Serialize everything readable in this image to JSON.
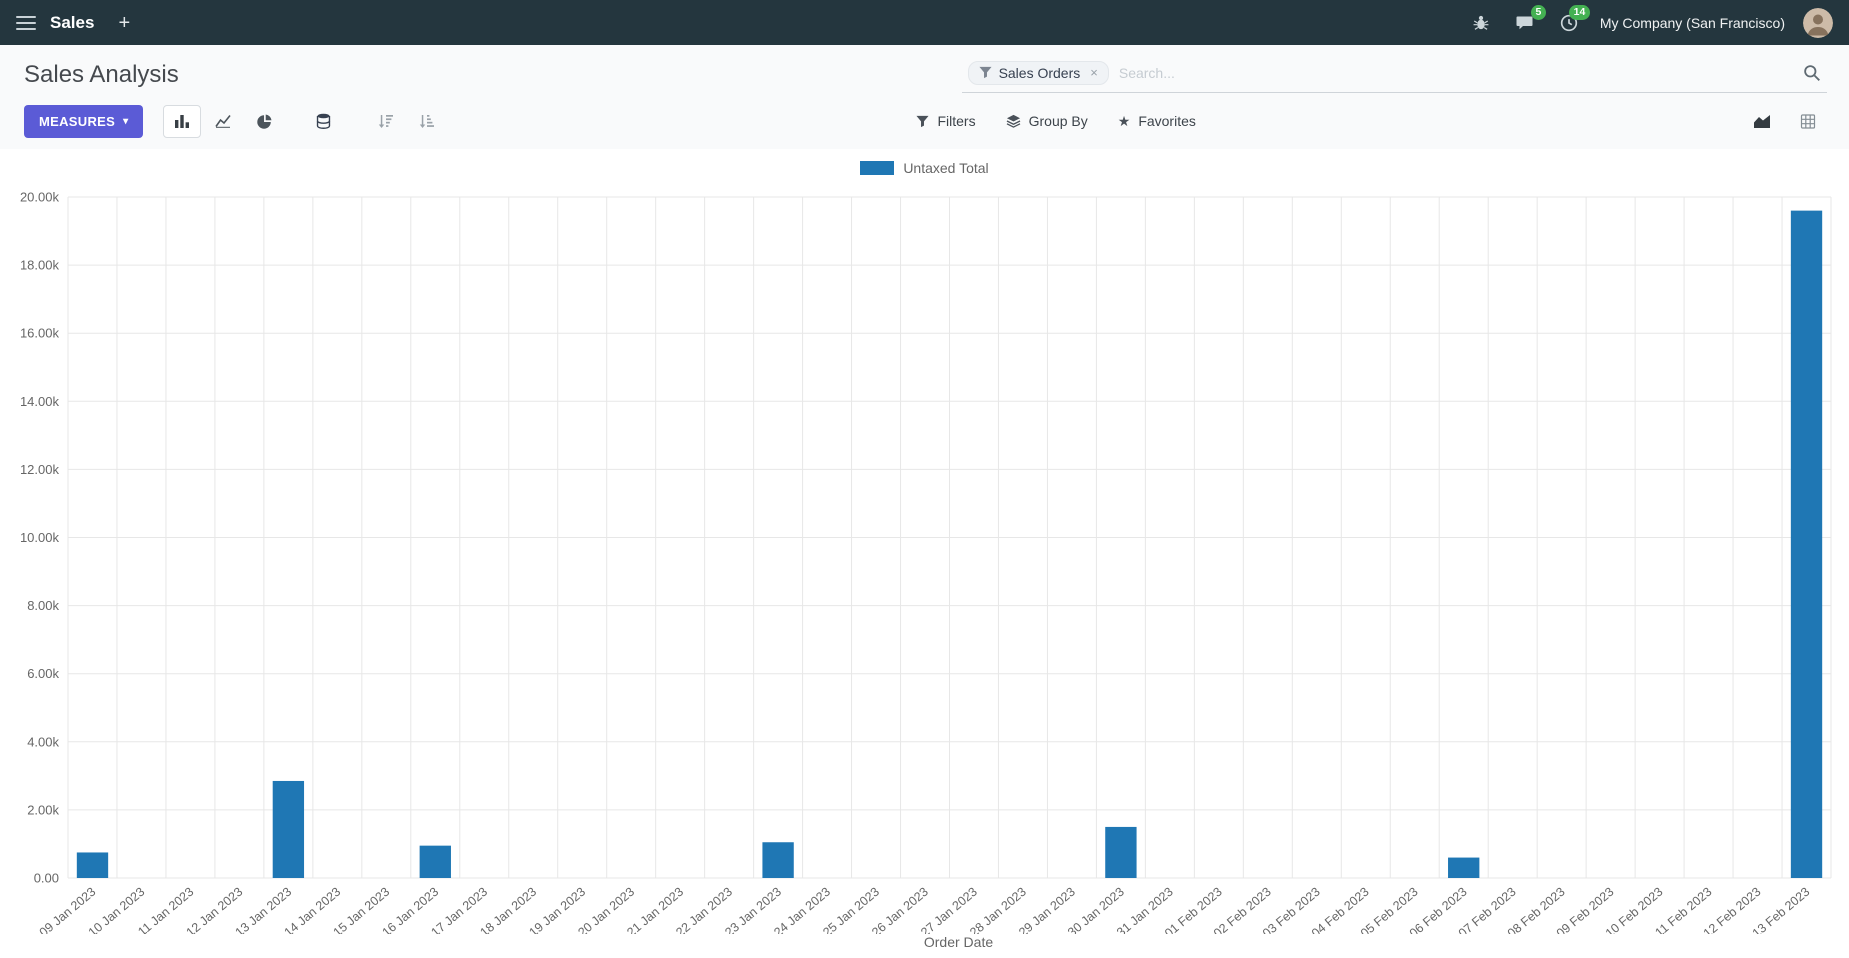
{
  "colors": {
    "topbar_bg": "#24363e",
    "primary": "#5B5BD6",
    "badge_green": "#44b152",
    "bar_blue": "#1f77b4"
  },
  "icons": {
    "plus": "+",
    "caret_down": "▾",
    "star": "★",
    "close": "×"
  },
  "topbar": {
    "app_name": "Sales",
    "message_count": "5",
    "activity_count": "14",
    "company": "My Company (San Francisco)"
  },
  "page": {
    "title": "Sales Analysis"
  },
  "search": {
    "facet_label": "Sales Orders",
    "placeholder": "Search..."
  },
  "toolbar": {
    "measures": "MEASURES",
    "filters": "Filters",
    "group_by": "Group By",
    "favorites": "Favorites"
  },
  "chart_data": {
    "type": "bar",
    "title": "",
    "xlabel": "Order Date",
    "ylabel": "",
    "ylim": [
      0,
      20000
    ],
    "ytick": 2000,
    "grid": true,
    "legend_position": "top",
    "bar_color": "#1f77b4",
    "categories": [
      "09 Jan 2023",
      "10 Jan 2023",
      "11 Jan 2023",
      "12 Jan 2023",
      "13 Jan 2023",
      "14 Jan 2023",
      "15 Jan 2023",
      "16 Jan 2023",
      "17 Jan 2023",
      "18 Jan 2023",
      "19 Jan 2023",
      "20 Jan 2023",
      "21 Jan 2023",
      "22 Jan 2023",
      "23 Jan 2023",
      "24 Jan 2023",
      "25 Jan 2023",
      "26 Jan 2023",
      "27 Jan 2023",
      "28 Jan 2023",
      "29 Jan 2023",
      "30 Jan 2023",
      "31 Jan 2023",
      "01 Feb 2023",
      "02 Feb 2023",
      "03 Feb 2023",
      "04 Feb 2023",
      "05 Feb 2023",
      "06 Feb 2023",
      "07 Feb 2023",
      "08 Feb 2023",
      "09 Feb 2023",
      "10 Feb 2023",
      "11 Feb 2023",
      "12 Feb 2023",
      "13 Feb 2023"
    ],
    "series": [
      {
        "name": "Untaxed Total",
        "values": [
          750,
          0,
          0,
          0,
          2850,
          0,
          0,
          950,
          0,
          0,
          0,
          0,
          0,
          0,
          1050,
          0,
          0,
          0,
          0,
          0,
          0,
          1500,
          0,
          0,
          0,
          0,
          0,
          0,
          600,
          0,
          0,
          0,
          0,
          0,
          0,
          19600
        ]
      }
    ]
  }
}
